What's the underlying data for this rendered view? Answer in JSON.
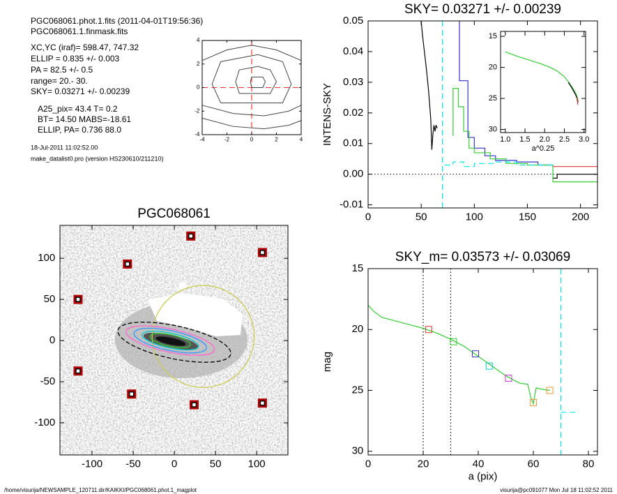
{
  "info": {
    "lines": [
      "PGC068061.phot.1.fits  (2011-04-01T19:56:36)",
      "PGC068061.1.finmask.fits",
      "XC,YC (iraf)=   598.47, 747.32",
      "ELLIP = 0.835 +/- 0.003",
      "PA    = 82.5 +/-   0.5",
      "range=   20.-   30.",
      "SKY= 0.03271 +/- 0.00239",
      "A25_pix= 43.4   T= 0.2",
      "BT=  14.50   MABS=-18.61",
      "ELLIP, PA= 0.736    88.0"
    ],
    "date": "18-Jul-2011 11:02:52.00",
    "program": "make_datalist0.pro (version HS230610/211210)"
  },
  "footer": {
    "left": "/home/visurija/NEWSAMPLE_120711.dir/KAIKKI/PGC068061.phot.1_magplot",
    "right": "visurija@pc091077  Mon Jul 18 11:02:52 2011"
  },
  "chart_data": [
    {
      "type": "contour",
      "xlim": [
        -4,
        4
      ],
      "ylim": [
        -4,
        4
      ],
      "xticks": [
        -4,
        -2,
        0,
        2,
        4
      ],
      "yticks": [
        -4,
        -2,
        0,
        2,
        4
      ],
      "color": "#444444",
      "contours": [
        {
          "x": [
            0,
            0.9,
            1.1,
            0.9,
            0,
            -0.1,
            0
          ],
          "y": [
            0,
            0,
            0.5,
            0.9,
            0.9,
            0.5,
            0
          ]
        },
        {
          "x": [
            -1,
            1.5,
            2,
            1.5,
            0.5,
            -1,
            -1.3,
            -1
          ],
          "y": [
            -0.5,
            -0.5,
            0.5,
            1.5,
            1.8,
            1.5,
            0.5,
            -0.5
          ]
        },
        {
          "x": [
            -2.5,
            2.5,
            3.2,
            2.5,
            0.5,
            -2.5,
            -3.2,
            -2.5
          ],
          "y": [
            -1.3,
            -1.3,
            0.3,
            2.2,
            2.8,
            2.2,
            0.3,
            -1.3
          ]
        },
        {
          "x": [
            -4,
            -2,
            0,
            2,
            4
          ],
          "y": [
            2.3,
            3.2,
            3.6,
            3.2,
            2.3
          ]
        },
        {
          "x": [
            -4,
            -1.5,
            1,
            3,
            4
          ],
          "y": [
            -1.5,
            -2.2,
            -2.4,
            -2,
            -1.5
          ]
        },
        {
          "x": [
            -4,
            -1.5,
            1,
            3,
            4
          ],
          "y": [
            -2.6,
            -3.3,
            -3.5,
            -3.2,
            -2.8
          ]
        }
      ],
      "vlines": [
        {
          "x": 0,
          "color": "#ff3333",
          "style": "dashed"
        }
      ],
      "hlines": [
        {
          "y": 0,
          "color": "#ff3333",
          "style": "dashed"
        }
      ]
    },
    {
      "type": "line",
      "title": "SKY= 0.03271 +/- 0.00239",
      "ylabel": "INTENS-SKY",
      "xlim": [
        0,
        216
      ],
      "ylim": [
        -0.011,
        0.05
      ],
      "xticks": [
        0,
        50,
        100,
        150,
        200
      ],
      "yticks": [
        -0.01,
        {
          "value": 0,
          "label": "0.00"
        },
        0.01,
        0.02,
        0.03,
        0.04,
        0.05
      ],
      "series": [
        {
          "color": "#000000",
          "style": "solid",
          "x": [
            50,
            51,
            53,
            55,
            57,
            59,
            60,
            61,
            62,
            63,
            64,
            65
          ],
          "y": [
            0.05,
            0.046,
            0.04,
            0.034,
            0.027,
            0.018,
            0.008,
            0.013,
            0.016,
            0.014,
            0.016,
            0.015
          ]
        },
        {
          "color": "#000000",
          "style": "solid",
          "x": [
            174,
            174,
            178,
            178,
            216
          ],
          "y": [
            -0.001,
            -0.0013,
            -0.0013,
            0,
            0
          ]
        },
        {
          "color": "#3333cc",
          "style": "solid",
          "x": [
            86,
            86,
            94,
            94,
            100,
            100,
            110,
            110,
            120,
            120,
            140,
            140,
            160,
            160,
            174
          ],
          "y": [
            0.05,
            0.0305,
            0.0305,
            0.012,
            0.012,
            0.0085,
            0.0085,
            0.006,
            0.006,
            0.0045,
            0.0045,
            0.004,
            0.004,
            0.003,
            0.003
          ]
        },
        {
          "color": "#33cc33",
          "style": "solid",
          "x": [
            80,
            80,
            85,
            85,
            90,
            90,
            95,
            95,
            100,
            100,
            115,
            115,
            130,
            130,
            150,
            150,
            174,
            174,
            216
          ],
          "y": [
            0.0125,
            0.028,
            0.028,
            0.022,
            0.022,
            0.014,
            0.014,
            0.0085,
            0.0085,
            0.007,
            0.007,
            0.005,
            0.005,
            0.0035,
            0.0035,
            0.003,
            0.003,
            -0.0025,
            -0.0025
          ]
        },
        {
          "color": "#dd3333",
          "style": "solid",
          "x": [
            174,
            216
          ],
          "y": [
            0.0025,
            0.0025
          ]
        },
        {
          "color": "#00e5e5",
          "style": "dashed",
          "x": [
            72,
            80,
            80,
            90,
            90,
            100,
            100,
            120,
            120,
            140,
            140,
            174
          ],
          "y": [
            0.003,
            0.003,
            0.004,
            0.004,
            0.0025,
            0.0025,
            0.0035,
            0.0035,
            0.004,
            0.004,
            0.003,
            0.003
          ]
        }
      ],
      "vlines": [
        {
          "x": 70,
          "color": "#00e5e5",
          "style": "dashed"
        }
      ],
      "hlines": [
        {
          "y": 0,
          "color": "#000000",
          "style": "dotted"
        }
      ]
    },
    {
      "type": "line",
      "xlabel": "a^0.25",
      "xlim": [
        0.88,
        3.04
      ],
      "ylim": [
        30.5,
        14.2
      ],
      "xticks": [
        {
          "value": 1,
          "label": "1.0"
        },
        1.5,
        {
          "value": 2,
          "label": "2.0"
        },
        2.5,
        {
          "value": 3,
          "label": "3.0"
        }
      ],
      "yticks": [
        15,
        20,
        25,
        30
      ],
      "series": [
        {
          "color": "#33cc33",
          "style": "solid",
          "x": [
            1,
            1.3,
            1.6,
            1.9,
            2.1,
            2.3,
            2.5,
            2.6,
            2.7,
            2.8,
            2.85
          ],
          "y": [
            17.5,
            18.2,
            18.8,
            19.4,
            19.9,
            20.5,
            21.5,
            22.3,
            23.2,
            24.3,
            25.3
          ]
        },
        {
          "color": "#000000",
          "style": "solid",
          "x": [
            2.6,
            2.7,
            2.8,
            2.85
          ],
          "y": [
            22.4,
            23.4,
            24.6,
            25.6
          ]
        },
        {
          "color": "#dd3333",
          "style": "solid",
          "x": [
            2.82,
            2.84
          ],
          "y": [
            24.8,
            26
          ]
        }
      ]
    },
    {
      "type": "image",
      "title": "PGC068061",
      "xlim": [
        -139,
        138
      ],
      "ylim": [
        -139,
        140
      ],
      "xticks": [
        -100,
        -50,
        0,
        50,
        100
      ],
      "yticks": [
        -100,
        -50,
        0,
        50,
        100
      ],
      "ellipses": [
        {
          "x": 35,
          "y": 5,
          "a": 62,
          "b": 62,
          "angle": 0,
          "color": "#cccc55"
        },
        {
          "x": 0,
          "y": -2,
          "a": 70,
          "b": 20,
          "angle": -12,
          "color": "#000000"
        },
        {
          "x": -5,
          "y": 0,
          "a": 55,
          "b": 14,
          "angle": -12,
          "color": "#ff66cc"
        },
        {
          "x": -5,
          "y": 0,
          "a": 45,
          "b": 12,
          "angle": -12,
          "color": "#3399ff"
        },
        {
          "x": -5,
          "y": 0,
          "a": 35,
          "b": 9,
          "angle": -12,
          "color": "#00cccc"
        },
        {
          "x": -5,
          "y": 0,
          "a": 25,
          "b": 7,
          "angle": -12,
          "color": "#33cc33"
        }
      ],
      "markers": {
        "x": [
          20,
          107,
          -57,
          -117,
          -117,
          -52,
          24,
          107
        ],
        "y": [
          127,
          107,
          93,
          50,
          -37,
          -65,
          -78,
          -76
        ],
        "color": "#b00000"
      }
    },
    {
      "type": "line",
      "title": "SKY_m=  0.03573 +/- 0.03069",
      "xlabel": "a (pix)",
      "ylabel": "mag",
      "xlim": [
        0,
        83.3
      ],
      "ylim": [
        30.3,
        15
      ],
      "xticks": [
        0,
        20,
        40,
        60,
        80
      ],
      "yticks": [
        15,
        20,
        25,
        30
      ],
      "series": [
        {
          "color": "#33cc33",
          "style": "solid",
          "x": [
            0,
            2,
            5,
            10,
            15,
            20,
            25,
            30,
            35,
            40,
            45,
            50,
            55,
            58,
            59,
            60,
            61,
            63,
            66
          ],
          "y": [
            18,
            18.5,
            19,
            19.3,
            19.6,
            19.9,
            20.3,
            20.8,
            21.4,
            22.2,
            23,
            23.8,
            24.4,
            24.5,
            25.5,
            26.1,
            24.8,
            24.9,
            25
          ]
        },
        {
          "color": "#00e5e5",
          "style": "dashed",
          "x": [
            70,
            76
          ],
          "y": [
            26.8,
            26.8
          ]
        }
      ],
      "markers": {
        "x": [
          22,
          31,
          39,
          44,
          51,
          60,
          66
        ],
        "y": [
          20,
          21,
          22,
          23,
          24,
          26,
          25
        ],
        "colors": [
          "#dd3333",
          "#33cc33",
          "#3333cc",
          "#00cccc",
          "#cc33cc",
          "#ee9933",
          "#ee9933"
        ]
      },
      "vlines": [
        {
          "x": 20,
          "color": "#000000",
          "style": "dotted"
        },
        {
          "x": 30,
          "color": "#000000",
          "style": "dotted"
        },
        {
          "x": 70,
          "color": "#00e5e5",
          "style": "dashed"
        }
      ]
    }
  ]
}
